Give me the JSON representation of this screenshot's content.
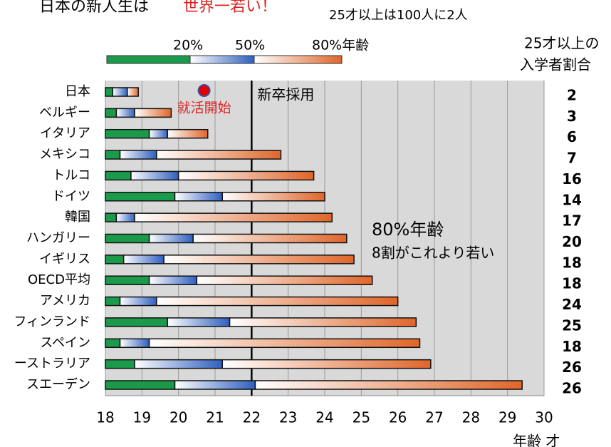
{
  "chart_data": {
    "type": "range_bar",
    "title": "日本の新人生は",
    "title_emphasis": "世界一若い！",
    "subtitle": "25才以上は100人に2人",
    "categories": [
      "日本",
      "ベルギー",
      "イタリア",
      "メキシコ",
      "トルコ",
      "ドイツ",
      "韓国",
      "ハンガリー",
      "イギリス",
      "OECD平均",
      "アメリカ",
      "フィンランド",
      "スペイン",
      "ーストラリア",
      "スエーデン"
    ],
    "series": [
      {
        "name": "20%",
        "color": "#1a9a4a",
        "values": [
          18.2,
          18.3,
          19.2,
          18.4,
          18.7,
          19.9,
          18.3,
          19.2,
          18.5,
          19.2,
          18.4,
          19.7,
          18.4,
          18.8,
          19.9
        ]
      },
      {
        "name": "50%",
        "color": "#2e5fbf",
        "values": [
          18.6,
          18.8,
          19.7,
          19.4,
          20.0,
          21.2,
          18.8,
          20.4,
          19.6,
          20.5,
          19.4,
          21.4,
          19.2,
          21.2,
          22.1
        ]
      },
      {
        "name": "80%年齢",
        "color": "#e0662a",
        "values": [
          18.9,
          19.8,
          20.8,
          22.8,
          23.7,
          24.0,
          24.2,
          24.6,
          24.8,
          25.3,
          26.0,
          26.5,
          26.6,
          26.9,
          29.4
        ]
      }
    ],
    "xlim": [
      18,
      30
    ],
    "xticks": [
      18,
      19,
      20,
      21,
      22,
      23,
      24,
      25,
      26,
      27,
      28,
      29,
      30
    ],
    "xlabel": "年齢 才",
    "grid": true,
    "right_column": {
      "header": [
        "25才以上の",
        "入学者割合"
      ],
      "values": [
        2,
        3,
        6,
        7,
        16,
        14,
        17,
        20,
        18,
        18,
        24,
        25,
        18,
        26,
        26
      ]
    },
    "annotations": [
      {
        "text": "就活開始",
        "x": 20.7
      },
      {
        "text": "新卒採用",
        "x": 22
      },
      {
        "text": "80%年齢"
      },
      {
        "text": "8割がこれより若い"
      }
    ]
  }
}
